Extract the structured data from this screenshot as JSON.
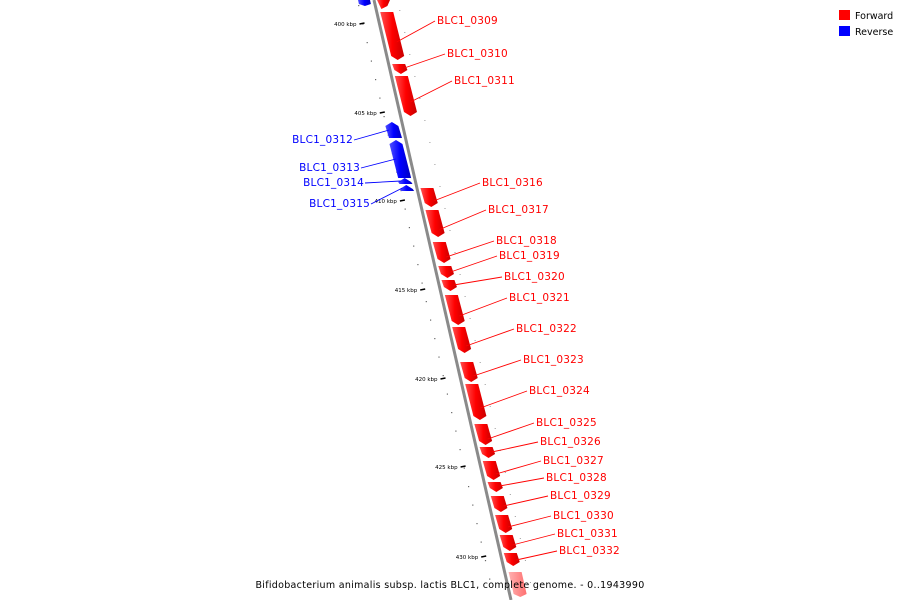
{
  "legend": [
    {
      "label": "Forward",
      "color": "#ff0000"
    },
    {
      "label": "Reverse",
      "color": "#0000ff"
    }
  ],
  "colors": {
    "forward": "#ff0000",
    "reverse": "#0000ff",
    "backbone": "#888888",
    "faded_forward": "#ff8080"
  },
  "caption": "Bifidobacterium animalis subsp. lactis BLC1, complete genome. - 0..1943990",
  "ticks": [
    {
      "label": "400 kbp"
    },
    {
      "label": "405 kbp"
    },
    {
      "label": "410 kbp"
    },
    {
      "label": "415 kbp"
    },
    {
      "label": "420 kbp"
    },
    {
      "label": "425 kbp"
    },
    {
      "label": "430 kbp"
    }
  ],
  "genes": [
    {
      "name": "BLC1_0309",
      "strand": "forward"
    },
    {
      "name": "BLC1_0310",
      "strand": "forward"
    },
    {
      "name": "BLC1_0311",
      "strand": "forward"
    },
    {
      "name": "BLC1_0312",
      "strand": "reverse"
    },
    {
      "name": "BLC1_0313",
      "strand": "reverse"
    },
    {
      "name": "BLC1_0314",
      "strand": "reverse"
    },
    {
      "name": "BLC1_0315",
      "strand": "reverse"
    },
    {
      "name": "BLC1_0316",
      "strand": "forward"
    },
    {
      "name": "BLC1_0317",
      "strand": "forward"
    },
    {
      "name": "BLC1_0318",
      "strand": "forward"
    },
    {
      "name": "BLC1_0319",
      "strand": "forward"
    },
    {
      "name": "BLC1_0320",
      "strand": "forward"
    },
    {
      "name": "BLC1_0321",
      "strand": "forward"
    },
    {
      "name": "BLC1_0322",
      "strand": "forward"
    },
    {
      "name": "BLC1_0323",
      "strand": "forward"
    },
    {
      "name": "BLC1_0324",
      "strand": "forward"
    },
    {
      "name": "BLC1_0325",
      "strand": "forward"
    },
    {
      "name": "BLC1_0326",
      "strand": "forward"
    },
    {
      "name": "BLC1_0327",
      "strand": "forward"
    },
    {
      "name": "BLC1_0328",
      "strand": "forward"
    },
    {
      "name": "BLC1_0329",
      "strand": "forward"
    },
    {
      "name": "BLC1_0330",
      "strand": "forward"
    },
    {
      "name": "BLC1_0331",
      "strand": "forward"
    },
    {
      "name": "BLC1_0332",
      "strand": "forward"
    }
  ]
}
